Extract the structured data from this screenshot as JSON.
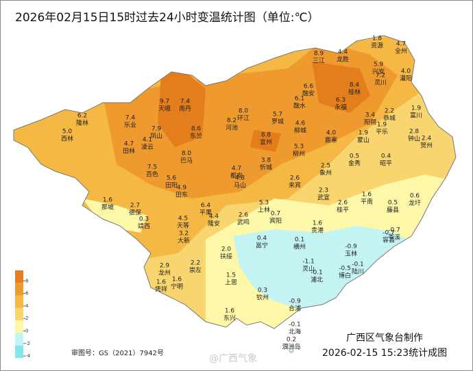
{
  "title": "2026年02月15日15时过去24小时变温统计图（单位:℃）",
  "legend": {
    "ticks": [
      8,
      6,
      4,
      2,
      0,
      -2,
      -4
    ],
    "colors": [
      "#e47d1b",
      "#ee9a2e",
      "#f5b844",
      "#f8d56e",
      "#fdf7a8",
      "#c4f3f3",
      "#86e6e9"
    ]
  },
  "stations": [
    {
      "name": "资源",
      "value": "1.8"
    },
    {
      "name": "全州",
      "value": "4.7"
    },
    {
      "name": "三江",
      "value": "8.9"
    },
    {
      "name": "龙胜",
      "value": "4.4"
    },
    {
      "name": "兴安",
      "value": "5.9"
    },
    {
      "name": "灵川",
      "value": "7.2"
    },
    {
      "name": "桂林",
      "value": "8.4"
    },
    {
      "name": "永福",
      "value": "6.3"
    },
    {
      "name": "融安",
      "value": "6.6"
    },
    {
      "name": "融水",
      "value": "6.1"
    },
    {
      "name": "灌阳",
      "value": "4.0"
    },
    {
      "name": "阳朔",
      "value": "3.4"
    },
    {
      "name": "平乐",
      "value": "1.9"
    },
    {
      "name": "富川",
      "value": "1.9"
    },
    {
      "name": "钟山",
      "value": "2.8"
    },
    {
      "name": "贺州",
      "value": "2.4"
    },
    {
      "name": "恭城",
      "value": "2.2"
    },
    {
      "name": "蒙山",
      "value": "1.9"
    },
    {
      "name": "金秀",
      "value": "0.5"
    },
    {
      "name": "昭平",
      "value": "0.4"
    },
    {
      "name": "乐业",
      "value": "7.4"
    },
    {
      "name": "天峨",
      "value": "9.7"
    },
    {
      "name": "南丹",
      "value": "7.4"
    },
    {
      "name": "凤山",
      "value": "7.9"
    },
    {
      "name": "东兰",
      "value": "8.6"
    },
    {
      "name": "河池",
      "value": "8.2"
    },
    {
      "name": "环江",
      "value": "8.0"
    },
    {
      "name": "宜州",
      "value": "8.8"
    },
    {
      "name": "罗城",
      "value": "5.7"
    },
    {
      "name": "凌云",
      "value": "4.1"
    },
    {
      "name": "巴马",
      "value": "8.0"
    },
    {
      "name": "田林",
      "value": "4.7"
    },
    {
      "name": "西林",
      "value": "5.0"
    },
    {
      "name": "隆林",
      "value": "6.2"
    },
    {
      "name": "百色",
      "value": "7.5"
    },
    {
      "name": "田阳",
      "value": "5.6"
    },
    {
      "name": "田东",
      "value": "4.9"
    },
    {
      "name": "都安",
      "value": "4.7"
    },
    {
      "name": "马山",
      "value": "4.8"
    },
    {
      "name": "忻城",
      "value": "3.8"
    },
    {
      "name": "来宾",
      "value": "2.6"
    },
    {
      "name": "象州",
      "value": "2.5"
    },
    {
      "name": "柳城",
      "value": "4.6"
    },
    {
      "name": "柳州",
      "value": "5.3"
    },
    {
      "name": "鹿寨",
      "value": "4.0"
    },
    {
      "name": "武宣",
      "value": "2.3"
    },
    {
      "name": "桂平",
      "value": "2.6"
    },
    {
      "name": "平南",
      "value": "1.6"
    },
    {
      "name": "藤县",
      "value": "0.5"
    },
    {
      "name": "龙圩",
      "value": "0.6"
    },
    {
      "name": "岑溪",
      "value": "-0.7"
    },
    {
      "name": "那坡",
      "value": "1.6"
    },
    {
      "name": "德保",
      "value": "2.7"
    },
    {
      "name": "靖西",
      "value": "0.3"
    },
    {
      "name": "平果",
      "value": "6.4"
    },
    {
      "name": "隆安",
      "value": "4.4"
    },
    {
      "name": "天等",
      "value": "4.5"
    },
    {
      "name": "大新",
      "value": "3.2"
    },
    {
      "name": "武鸣",
      "value": "2.6"
    },
    {
      "name": "上林",
      "value": "5.3"
    },
    {
      "name": "宾阳",
      "value": "0.7"
    },
    {
      "name": "贵港",
      "value": "1.6"
    },
    {
      "name": "横州",
      "value": "0.1"
    },
    {
      "name": "邕宁",
      "value": "0.4"
    },
    {
      "name": "扶绥",
      "value": "2.0"
    },
    {
      "name": "龙州",
      "value": "2.9"
    },
    {
      "name": "崇左",
      "value": "2.2"
    },
    {
      "name": "凭祥",
      "value": "1.6"
    },
    {
      "name": "宁明",
      "value": "1.6"
    },
    {
      "name": "上思",
      "value": "1.5"
    },
    {
      "name": "东兴",
      "value": "1.6"
    },
    {
      "name": "钦州",
      "value": "0.3"
    },
    {
      "name": "灵山",
      "value": "-1.1"
    },
    {
      "name": "浦北",
      "value": "-0.1"
    },
    {
      "name": "博白",
      "value": "-0.5"
    },
    {
      "name": "陆川",
      "value": "-0.1"
    },
    {
      "name": "玉林",
      "value": "-0.9"
    },
    {
      "name": "容县",
      "value": "-0.7"
    },
    {
      "name": "合浦",
      "value": "-0.9"
    },
    {
      "name": "北海",
      "value": "-0.1"
    },
    {
      "name": "涠洲岛",
      "value": "0.2"
    }
  ],
  "footer": {
    "approval": "审图号：GS（2021）7942号",
    "maker": "广西区气象台制作",
    "timestamp": "2026-02-15 15:23统计成图",
    "watermark": "@广西气象"
  }
}
